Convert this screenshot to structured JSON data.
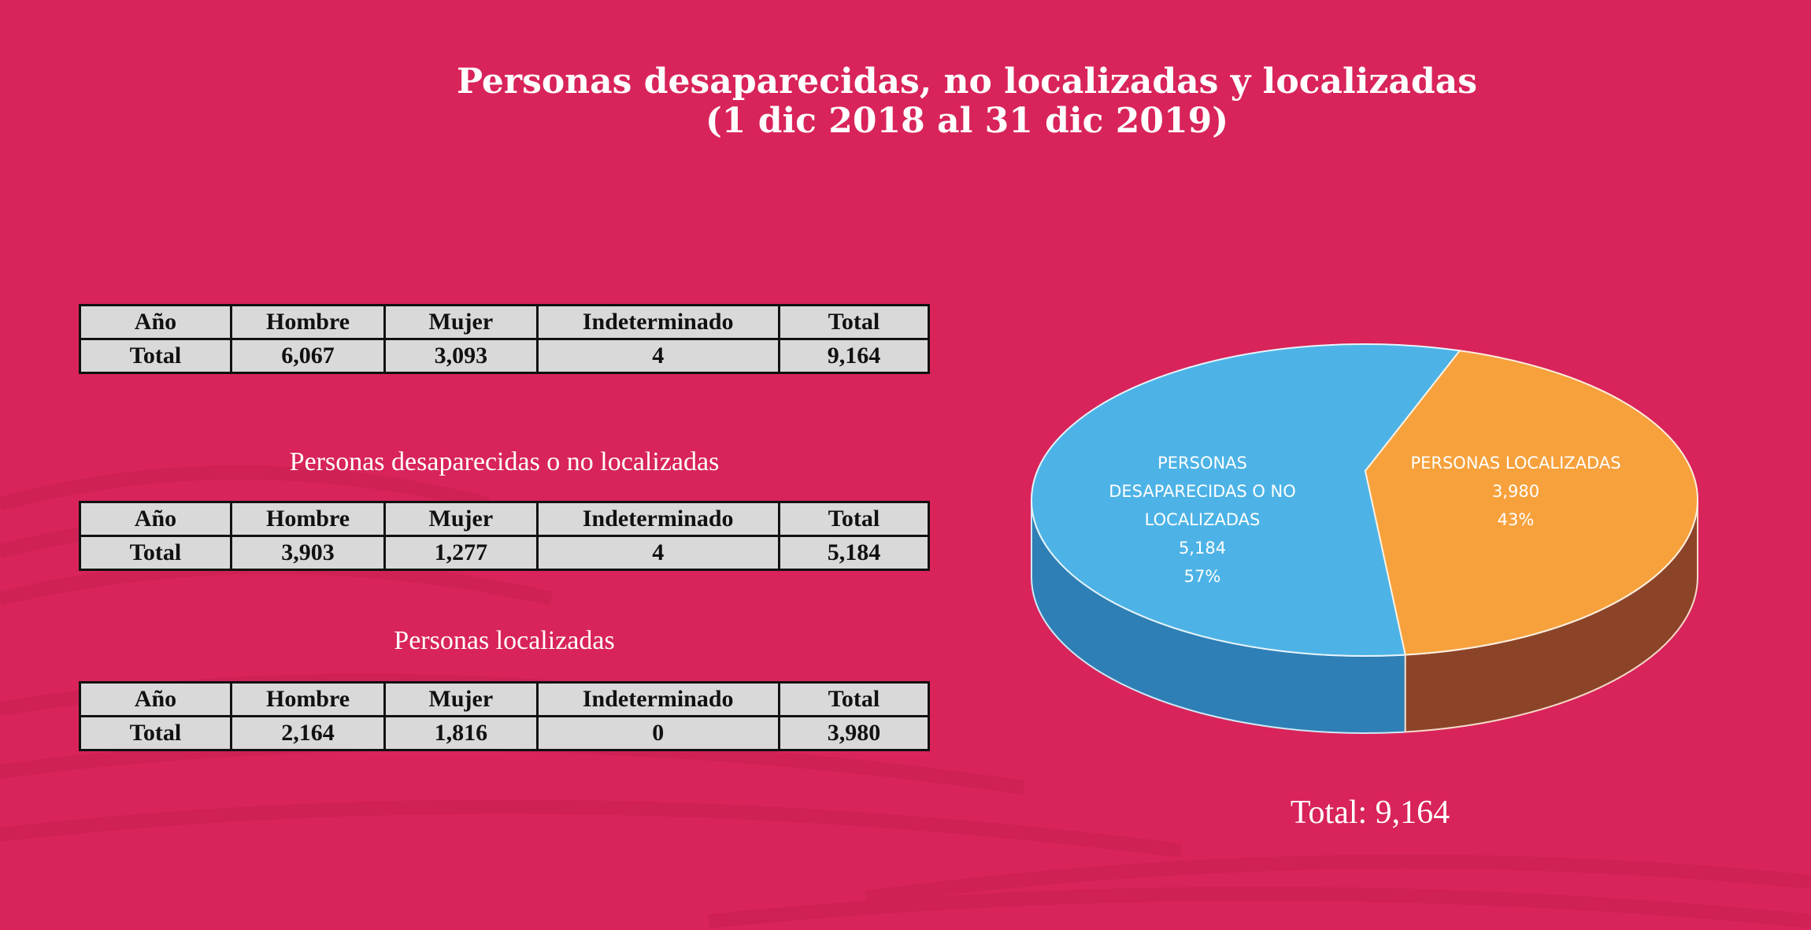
{
  "title": {
    "line1": "Personas desaparecidas, no localizadas y localizadas",
    "line2": "(1 dic 2018 al 31 dic 2019)"
  },
  "tables": [
    {
      "subtitle": "",
      "headers": [
        "Año",
        "Hombre",
        "Mujer",
        "Indeterminado",
        "Total"
      ],
      "row": [
        "Total",
        "6,067",
        "3,093",
        "4",
        "9,164"
      ]
    },
    {
      "subtitle": "Personas desaparecidas o no localizadas",
      "headers": [
        "Año",
        "Hombre",
        "Mujer",
        "Indeterminado",
        "Total"
      ],
      "row": [
        "Total",
        "3,903",
        "1,277",
        "4",
        "5,184"
      ]
    },
    {
      "subtitle": "Personas localizadas",
      "headers": [
        "Año",
        "Hombre",
        "Mujer",
        "Indeterminado",
        "Total"
      ],
      "row": [
        "Total",
        "2,164",
        "1,816",
        "0",
        "3,980"
      ]
    }
  ],
  "chart_data": {
    "type": "pie",
    "style": "3d",
    "slices": [
      {
        "label_lines": [
          "PERSONAS",
          "DESAPARECIDAS O NO",
          "LOCALIZADAS"
        ],
        "value": 5184,
        "value_label": "5,184",
        "percent": 57,
        "percent_label": "57%",
        "color": "#4db3e6",
        "side_color": "#2e7fb5"
      },
      {
        "label_lines": [
          "PERSONAS LOCALIZADAS"
        ],
        "value": 3980,
        "value_label": "3,980",
        "percent": 43,
        "percent_label": "43%",
        "color": "#f7a13c",
        "side_color": "#8c4428"
      }
    ],
    "total_label": "Total: 9,164"
  }
}
